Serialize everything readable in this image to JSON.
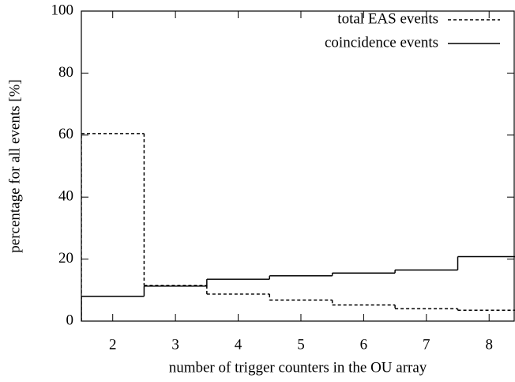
{
  "chart_data": {
    "type": "histogram",
    "xlabel": "number of trigger counters in the OU array",
    "ylabel": "percentage for all events [%]",
    "bins": [
      1.5,
      2.5,
      3.5,
      4.5,
      5.5,
      6.5,
      7.5,
      8.5
    ],
    "series": [
      {
        "name": "total EAS events",
        "color": "#000000",
        "dash": true,
        "values": [
          60.5,
          11.5,
          8.7,
          6.8,
          5.2,
          4.0,
          3.5
        ]
      },
      {
        "name": "coincidence events",
        "color": "#000000",
        "dash": false,
        "values": [
          8.0,
          11.3,
          13.5,
          14.6,
          15.5,
          16.5,
          20.8
        ]
      }
    ],
    "xlim": [
      1.5,
      8.4
    ],
    "ylim": [
      0,
      100
    ],
    "xticks": [
      2,
      3,
      4,
      5,
      6,
      7,
      8
    ],
    "yticks": [
      0,
      20,
      40,
      60,
      80,
      100
    ],
    "legend": "top-right"
  }
}
